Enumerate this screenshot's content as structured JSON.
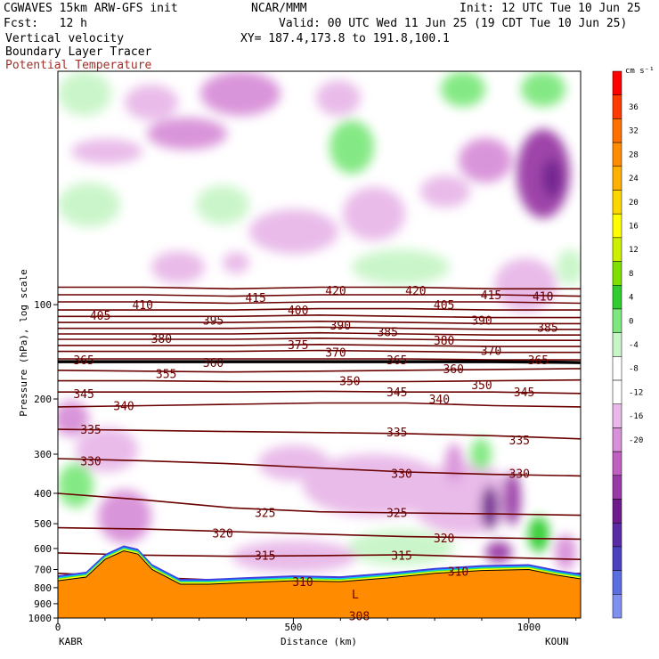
{
  "header": {
    "model": "CGWAVES 15km ARW-GFS init",
    "org": "NCAR/MMM",
    "init": "Init: 12 UTC Tue 10 Jun 25",
    "fcst": "Fcst:   12 h",
    "valid": "Valid: 00 UTC Wed 11 Jun 25 (19 CDT Tue 10 Jun 25)",
    "field1": "Vertical velocity",
    "xy": "XY= 187.4,173.8 to 191.8,100.1",
    "field2": "Boundary Layer Tracer",
    "field3": "Potential Temperature"
  },
  "axes": {
    "ylabel": "Pressure (hPa), log scale",
    "xlabel": "Distance (km)",
    "left_station": "KABR",
    "right_station": "KOUN"
  },
  "colorbar": {
    "unit": "cm s⁻¹",
    "ticks": [
      "36",
      "32",
      "28",
      "24",
      "20",
      "16",
      "12",
      "8",
      "4",
      "0",
      "-4",
      "-8",
      "-12",
      "-16",
      "-20"
    ],
    "colors": [
      "#ff0000",
      "#ff3a00",
      "#ff7000",
      "#ff8c00",
      "#ffb000",
      "#ffd700",
      "#ffff00",
      "#ccf000",
      "#7ee000",
      "#2ecc2e",
      "#7ee87e",
      "#c8f5c8",
      "#ffffff",
      "#ffffff",
      "#e8b8e8",
      "#d890d8",
      "#c060c0",
      "#9a3aa6",
      "#6e1a8c",
      "#5a2aa6",
      "#4a40c0",
      "#5a6ee0",
      "#8090f0"
    ]
  },
  "chart_data": {
    "type": "heatmap",
    "title": "Vertical velocity, Boundary Layer Tracer, Potential Temperature",
    "xlabel": "Distance (km)",
    "ylabel": "Pressure (hPa), log scale",
    "xlim": [
      0,
      1110
    ],
    "ylim_hPa": [
      1000,
      18
    ],
    "x_ticks": [
      0,
      500,
      1000
    ],
    "y_ticks": [
      100,
      200,
      300,
      400,
      500,
      600,
      700,
      800,
      900,
      1000
    ],
    "color_unit": "cm s-1",
    "color_ticks": [
      36,
      32,
      28,
      24,
      20,
      16,
      12,
      8,
      4,
      0,
      -4,
      -8,
      -12,
      -16,
      -20
    ],
    "annotations": [
      "L"
    ],
    "theta_contours": [
      {
        "value": 420,
        "label_x": 590,
        "label_p": 90
      },
      {
        "value": 420,
        "label_x": 760,
        "label_p": 90
      },
      {
        "value": 415,
        "label_x": 420,
        "label_p": 95
      },
      {
        "value": 415,
        "label_x": 920,
        "label_p": 93
      },
      {
        "value": 410,
        "label_x": 180,
        "label_p": 100
      },
      {
        "value": 410,
        "label_x": 1030,
        "label_p": 94
      },
      {
        "value": 405,
        "label_x": 90,
        "label_p": 108
      },
      {
        "value": 405,
        "label_x": 820,
        "label_p": 100
      },
      {
        "value": 400,
        "label_x": 510,
        "label_p": 104
      },
      {
        "value": 395,
        "label_x": 330,
        "label_p": 112
      },
      {
        "value": 390,
        "label_x": 600,
        "label_p": 116
      },
      {
        "value": 390,
        "label_x": 900,
        "label_p": 112
      },
      {
        "value": 385,
        "label_x": 700,
        "label_p": 122
      },
      {
        "value": 385,
        "label_x": 1040,
        "label_p": 118
      },
      {
        "value": 380,
        "label_x": 220,
        "label_p": 128
      },
      {
        "value": 380,
        "label_x": 820,
        "label_p": 130
      },
      {
        "value": 375,
        "label_x": 510,
        "label_p": 134
      },
      {
        "value": 370,
        "label_x": 590,
        "label_p": 142
      },
      {
        "value": 370,
        "label_x": 920,
        "label_p": 140
      },
      {
        "value": 365,
        "label_x": 55,
        "label_p": 150
      },
      {
        "value": 365,
        "label_x": 720,
        "label_p": 150
      },
      {
        "value": 365,
        "label_x": 1020,
        "label_p": 150
      },
      {
        "value": 360,
        "label_x": 330,
        "label_p": 153
      },
      {
        "value": 360,
        "label_x": 840,
        "label_p": 160
      },
      {
        "value": 355,
        "label_x": 230,
        "label_p": 166
      },
      {
        "value": 350,
        "label_x": 620,
        "label_p": 175
      },
      {
        "value": 350,
        "label_x": 900,
        "label_p": 180
      },
      {
        "value": 345,
        "label_x": 55,
        "label_p": 192
      },
      {
        "value": 345,
        "label_x": 720,
        "label_p": 190
      },
      {
        "value": 345,
        "label_x": 990,
        "label_p": 190
      },
      {
        "value": 340,
        "label_x": 140,
        "label_p": 210
      },
      {
        "value": 340,
        "label_x": 810,
        "label_p": 200
      },
      {
        "value": 335,
        "label_x": 70,
        "label_p": 250
      },
      {
        "value": 335,
        "label_x": 720,
        "label_p": 255
      },
      {
        "value": 335,
        "label_x": 980,
        "label_p": 270
      },
      {
        "value": 330,
        "label_x": 70,
        "label_p": 315
      },
      {
        "value": 330,
        "label_x": 730,
        "label_p": 345
      },
      {
        "value": 330,
        "label_x": 980,
        "label_p": 345
      },
      {
        "value": 325,
        "label_x": 440,
        "label_p": 460
      },
      {
        "value": 325,
        "label_x": 720,
        "label_p": 460
      },
      {
        "value": 320,
        "label_x": 350,
        "label_p": 535
      },
      {
        "value": 320,
        "label_x": 820,
        "label_p": 555
      },
      {
        "value": 315,
        "label_x": 440,
        "label_p": 630
      },
      {
        "value": 315,
        "label_x": 730,
        "label_p": 630
      },
      {
        "value": 310,
        "label_x": 520,
        "label_p": 765
      },
      {
        "value": 310,
        "label_x": 850,
        "label_p": 710
      },
      {
        "value": 308,
        "label_x": 640,
        "label_p": 985
      }
    ],
    "theta_lines": [
      {
        "value": 420,
        "p": [
          88,
          88,
          89,
          88,
          88,
          89,
          89
        ]
      },
      {
        "value": 415,
        "p": [
          93,
          93,
          94,
          93,
          93,
          93,
          94
        ]
      },
      {
        "value": 410,
        "p": [
          98,
          98,
          99,
          98,
          98,
          98,
          99
        ]
      },
      {
        "value": 405,
        "p": [
          104,
          104,
          104,
          103,
          103,
          104,
          104
        ]
      },
      {
        "value": 400,
        "p": [
          109,
          109,
          109,
          108,
          109,
          110,
          110
        ]
      },
      {
        "value": 395,
        "p": [
          114,
          114,
          114,
          113,
          114,
          115,
          115
        ]
      },
      {
        "value": 390,
        "p": [
          119,
          119,
          119,
          118,
          119,
          120,
          120
        ]
      },
      {
        "value": 385,
        "p": [
          124,
          124,
          124,
          123,
          124,
          125,
          125
        ]
      },
      {
        "value": 380,
        "p": [
          129,
          129,
          129,
          128,
          129,
          130,
          130
        ]
      },
      {
        "value": 375,
        "p": [
          135,
          135,
          135,
          134,
          135,
          136,
          136
        ]
      },
      {
        "value": 370,
        "p": [
          141,
          141,
          141,
          140,
          141,
          142,
          142
        ]
      },
      {
        "value": 365,
        "p": [
          149,
          149,
          149,
          149,
          149,
          150,
          150
        ]
      },
      {
        "value": 360,
        "p": [
          152,
          152,
          152,
          152,
          152,
          152,
          153
        ]
      },
      {
        "value": 355,
        "p": [
          162,
          163,
          164,
          163,
          162,
          161,
          160
        ]
      },
      {
        "value": 350,
        "p": [
          175,
          175,
          176,
          176,
          176,
          175,
          174
        ]
      },
      {
        "value": 345,
        "p": [
          190,
          190,
          190,
          189,
          190,
          190,
          192
        ]
      },
      {
        "value": 340,
        "p": [
          212,
          210,
          208,
          206,
          206,
          210,
          212
        ]
      },
      {
        "value": 335,
        "p": [
          250,
          252,
          254,
          256,
          258,
          262,
          268
        ]
      },
      {
        "value": 330,
        "p": [
          310,
          315,
          322,
          332,
          342,
          348,
          352
        ]
      },
      {
        "value": 325,
        "p": [
          400,
          420,
          445,
          458,
          462,
          465,
          470
        ]
      },
      {
        "value": 320,
        "p": [
          515,
          520,
          530,
          540,
          550,
          555,
          560
        ]
      },
      {
        "value": 315,
        "p": [
          620,
          630,
          635,
          632,
          628,
          640,
          650
        ]
      },
      {
        "value": 310,
        "p": [
          720,
          740,
          760,
          770,
          760,
          730,
          720
        ]
      },
      {
        "value": 308,
        "p": [
          975,
          980,
          985,
          985,
          985,
          985,
          985
        ]
      }
    ],
    "terrain": {
      "x": [
        0,
        60,
        100,
        140,
        170,
        200,
        260,
        320,
        400,
        500,
        600,
        700,
        800,
        900,
        1000,
        1060,
        1110
      ],
      "p": [
        760,
        740,
        650,
        610,
        625,
        700,
        780,
        780,
        770,
        760,
        765,
        745,
        720,
        705,
        700,
        730,
        750
      ]
    }
  }
}
